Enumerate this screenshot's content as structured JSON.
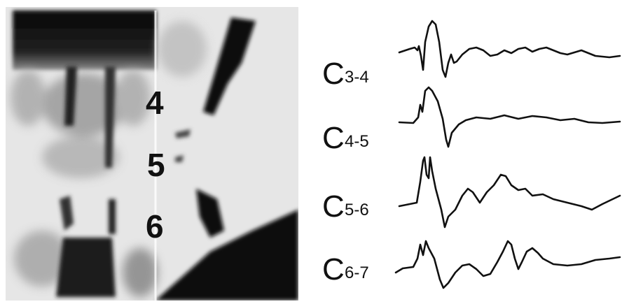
{
  "xray": {
    "levels": [
      "4",
      "5",
      "6"
    ]
  },
  "traces": [
    {
      "letter": "C",
      "level": "3-4"
    },
    {
      "letter": "C",
      "level": "4-5"
    },
    {
      "letter": "C",
      "level": "5-6"
    },
    {
      "letter": "C",
      "level": "6-7"
    }
  ]
}
